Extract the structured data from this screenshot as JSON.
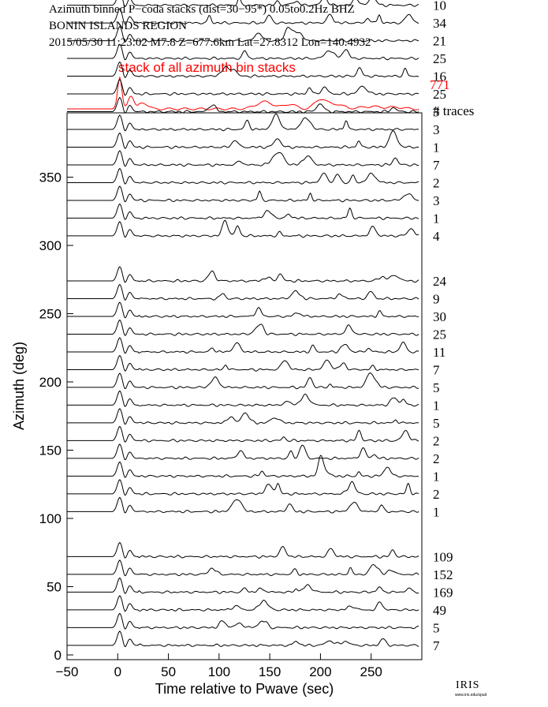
{
  "header": {
    "line1": "Azimuth binned P−coda stacks (dist=30−95*)  0.05to0.2Hz  BHZ",
    "line2": "BONIN ISLANDS REGION",
    "line3": "2015/05/30   11:23:02   M7.8   Z=677.6km  Lat=27.8312  Lon=140.4932"
  },
  "stack_label": "stack of all azimuth bin stacks",
  "stack_count": "771",
  "traces_label": "# traces",
  "logo": "IRIS",
  "logo_sub": "www.iris.edu/spud",
  "colors": {
    "stack": "#ff0000",
    "traces": "#000000"
  },
  "chart_data": {
    "type": "line",
    "xlabel": "Time relative to Pwave (sec)",
    "ylabel": "Azimuth (deg)",
    "xlim": [
      -50,
      300
    ],
    "ylim": [
      0,
      385
    ],
    "xticks": [
      -50,
      0,
      50,
      100,
      150,
      200,
      250
    ],
    "xtick_labels": [
      "−50",
      "0",
      "50",
      "100",
      "150",
      "200",
      "250"
    ],
    "yticks": [
      0,
      50,
      100,
      150,
      200,
      250,
      300,
      350
    ],
    "grid": false,
    "series": [
      {
        "azimuth": 7,
        "count": "7"
      },
      {
        "azimuth": 20,
        "count": "5"
      },
      {
        "azimuth": 33,
        "count": "49"
      },
      {
        "azimuth": 46,
        "count": "169"
      },
      {
        "azimuth": 59,
        "count": "152"
      },
      {
        "azimuth": 72,
        "count": "109"
      },
      {
        "azimuth": 105,
        "count": "1"
      },
      {
        "azimuth": 118,
        "count": "2"
      },
      {
        "azimuth": 131,
        "count": "1"
      },
      {
        "azimuth": 144,
        "count": "2"
      },
      {
        "azimuth": 157,
        "count": "2"
      },
      {
        "azimuth": 170,
        "count": "5"
      },
      {
        "azimuth": 183,
        "count": "1"
      },
      {
        "azimuth": 196,
        "count": "5"
      },
      {
        "azimuth": 209,
        "count": "7"
      },
      {
        "azimuth": 222,
        "count": "11"
      },
      {
        "azimuth": 235,
        "count": "25"
      },
      {
        "azimuth": 248,
        "count": "30"
      },
      {
        "azimuth": 261,
        "count": "9"
      },
      {
        "azimuth": 274,
        "count": "24"
      },
      {
        "azimuth": 307,
        "count": "4"
      },
      {
        "azimuth": 320,
        "count": "1"
      },
      {
        "azimuth": 333,
        "count": "3"
      },
      {
        "azimuth": 346,
        "count": "2"
      },
      {
        "azimuth": 359,
        "count": "7"
      },
      {
        "azimuth": 372,
        "count": "1"
      },
      {
        "azimuth": 385,
        "count": "3"
      },
      {
        "azimuth": 398,
        "count": "3"
      },
      {
        "azimuth": 411,
        "count": "25"
      },
      {
        "azimuth": 424,
        "count": "16"
      },
      {
        "azimuth": 437,
        "count": "25"
      },
      {
        "azimuth": 450,
        "count": "21"
      },
      {
        "azimuth": 463,
        "count": "34"
      },
      {
        "azimuth": 476,
        "count": "10"
      }
    ]
  }
}
